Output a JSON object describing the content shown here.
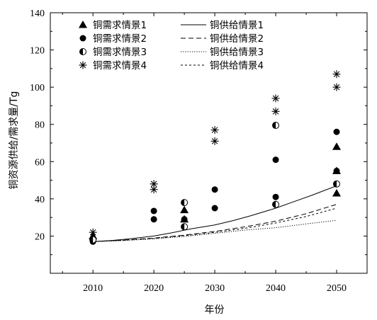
{
  "chart_data": {
    "type": "scatter",
    "xlabel": "年份",
    "ylabel": "铜资源供给/需求量/Tg",
    "xlim": [
      2003,
      2055
    ],
    "ylim": [
      0,
      140
    ],
    "xticks": [
      2010,
      2020,
      2030,
      2040,
      2050
    ],
    "yticks": [
      20,
      40,
      60,
      80,
      100,
      120,
      140
    ],
    "legend_position": "top-left",
    "grid": false,
    "demand_series": [
      {
        "name": "铜需求情景1",
        "marker": "triangle",
        "points": [
          [
            2010,
            20
          ],
          [
            2025,
            29
          ],
          [
            2025,
            34
          ],
          [
            2050,
            43
          ],
          [
            2050,
            55
          ],
          [
            2050,
            68
          ]
        ]
      },
      {
        "name": "铜需求情景2",
        "marker": "circle",
        "points": [
          [
            2010,
            17
          ],
          [
            2020,
            29
          ],
          [
            2020,
            33.5
          ],
          [
            2025,
            29
          ],
          [
            2030,
            35
          ],
          [
            2030,
            45
          ],
          [
            2040,
            41
          ],
          [
            2040,
            61
          ],
          [
            2050,
            55
          ],
          [
            2050,
            76
          ]
        ]
      },
      {
        "name": "铜需求情景3",
        "marker": "half-circle",
        "points": [
          [
            2010,
            18
          ],
          [
            2025,
            25
          ],
          [
            2025,
            38
          ],
          [
            2040,
            37
          ],
          [
            2040,
            79.5
          ],
          [
            2050,
            48
          ]
        ]
      },
      {
        "name": "铜需求情景4",
        "marker": "asterisk",
        "points": [
          [
            2010,
            22
          ],
          [
            2020,
            45
          ],
          [
            2020,
            48
          ],
          [
            2030,
            71
          ],
          [
            2030,
            77
          ],
          [
            2040,
            87
          ],
          [
            2040,
            94
          ],
          [
            2050,
            100
          ],
          [
            2050,
            107
          ]
        ]
      }
    ],
    "supply_series": [
      {
        "name": "铜供给情景1",
        "style": "solid",
        "x": [
          2010,
          2013,
          2016,
          2020,
          2023,
          2026,
          2030,
          2033,
          2036,
          2040,
          2043,
          2046,
          2048,
          2050
        ],
        "y": [
          17,
          17.6,
          18.5,
          20,
          21.8,
          23.8,
          26,
          28.3,
          31,
          35,
          38.5,
          42,
          44.5,
          47
        ]
      },
      {
        "name": "铜供给情景2",
        "style": "dashed",
        "x": [
          2010,
          2015,
          2020,
          2025,
          2030,
          2035,
          2040,
          2045,
          2050
        ],
        "y": [
          17,
          17.8,
          18.9,
          20.5,
          22.5,
          25,
          28,
          32,
          37
        ]
      },
      {
        "name": "铜供给情景3",
        "style": "dotted",
        "x": [
          2010,
          2015,
          2020,
          2025,
          2030,
          2035,
          2040,
          2042,
          2045,
          2050
        ],
        "y": [
          17,
          17.6,
          18.5,
          19.8,
          21.5,
          23.2,
          24.5,
          25.3,
          26.5,
          28.5
        ]
      },
      {
        "name": "铜供给情景4",
        "style": "short-dashed",
        "x": [
          2010,
          2015,
          2020,
          2025,
          2030,
          2035,
          2040,
          2045,
          2050
        ],
        "y": [
          17,
          17.7,
          18.7,
          20.2,
          22,
          24.2,
          27,
          30.5,
          35
        ]
      }
    ]
  }
}
